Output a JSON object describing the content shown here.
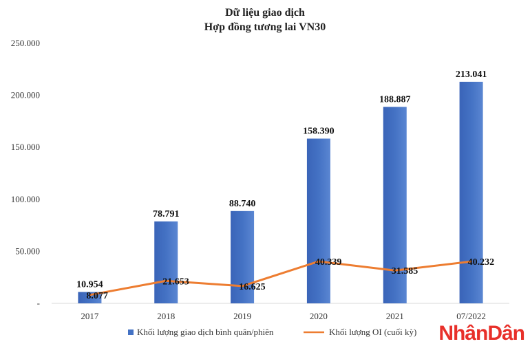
{
  "chart_data": {
    "type": "bar",
    "title": "Dữ liệu giao dịch",
    "subtitle": "Hợp đồng tương lai VN30",
    "categories": [
      "2017",
      "2018",
      "2019",
      "2020",
      "2021",
      "07/2022"
    ],
    "ylim": [
      0,
      250000
    ],
    "yticks": [
      0,
      50000,
      100000,
      150000,
      200000,
      250000
    ],
    "ytick_labels": [
      "-",
      "50.000",
      "100.000",
      "150.000",
      "200.000",
      "250.000"
    ],
    "grid": false,
    "legend_position": "bottom",
    "series": [
      {
        "name": "Khối lượng giao dịch bình quân/phiên",
        "type": "bar",
        "color": "#4472C4",
        "values": [
          10954,
          78791,
          88740,
          158390,
          188887,
          213041
        ],
        "labels": [
          "10.954",
          "78.791",
          "88.740",
          "158.390",
          "188.887",
          "213.041"
        ]
      },
      {
        "name": "Khối lượng OI (cuối kỳ)",
        "type": "line",
        "color": "#ED7D31",
        "values": [
          8077,
          21653,
          16625,
          40339,
          31585,
          40232
        ],
        "labels": [
          "8.077",
          "21.653",
          "16.625",
          "40.339",
          "31.585",
          "40.232"
        ]
      }
    ]
  },
  "watermark": {
    "part1": "Nhân",
    "part2": "Dân",
    "color1": "#E8302A",
    "color2": "#E8302A"
  }
}
